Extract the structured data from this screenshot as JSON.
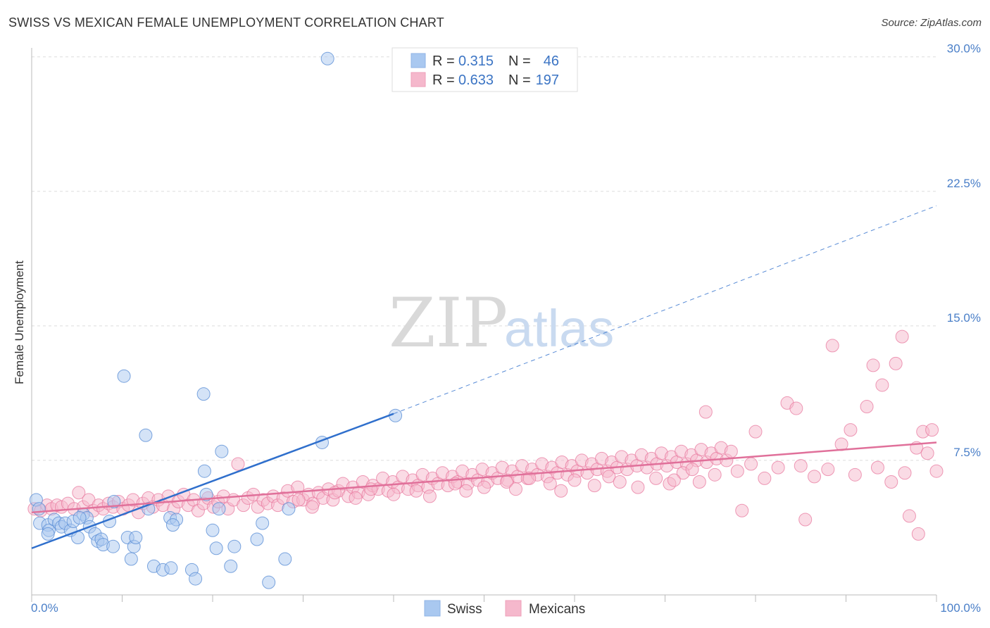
{
  "header": {
    "title": "SWISS VS MEXICAN FEMALE UNEMPLOYMENT CORRELATION CHART",
    "source": "Source: ZipAtlas.com"
  },
  "watermark": {
    "zip": "ZIP",
    "atlas": "atlas"
  },
  "legend": {
    "items": [
      {
        "r_label": "R =",
        "r_value": "0.315",
        "n_label": "N =",
        "n_value": "46",
        "color": "#a9c8f0"
      },
      {
        "r_label": "R =",
        "r_value": "0.633",
        "n_label": "N =",
        "n_value": "197",
        "color": "#f5b8cc"
      }
    ]
  },
  "bottom_legend": {
    "swiss": "Swiss",
    "mexicans": "Mexicans"
  },
  "chart_data": {
    "type": "scatter",
    "title": "SWISS VS MEXICAN FEMALE UNEMPLOYMENT CORRELATION CHART",
    "xlabel": "",
    "ylabel": "Female Unemployment",
    "xlim": [
      0,
      100
    ],
    "ylim": [
      0,
      30.5
    ],
    "x_tick_labels": [
      "0.0%",
      "100.0%"
    ],
    "y_ticks": [
      7.5,
      15.0,
      22.5,
      30.0
    ],
    "y_tick_labels": [
      "7.5%",
      "15.0%",
      "22.5%",
      "30.0%"
    ],
    "grid": true,
    "colors": {
      "swiss": "#5b8fd6",
      "swiss_fill": "#a9c8f0",
      "mexicans": "#e8799f",
      "mexicans_fill": "#f5b8cc",
      "swiss_line": "#2f6fcc",
      "mexicans_line": "#e0709a"
    },
    "series": [
      {
        "name": "Swiss",
        "trend": {
          "x0": 0,
          "y0": 2.6,
          "x1": 40,
          "y1": 10.1,
          "dash_x1": 100,
          "dash_y1": 21.7
        },
        "points": [
          [
            0.5,
            5.3
          ],
          [
            0.8,
            4.8
          ],
          [
            0.9,
            4.0
          ],
          [
            1.8,
            3.9
          ],
          [
            1.9,
            3.6
          ],
          [
            2.5,
            4.2
          ],
          [
            3.0,
            4.0
          ],
          [
            3.3,
            3.8
          ],
          [
            3.7,
            4.0
          ],
          [
            4.3,
            3.6
          ],
          [
            4.6,
            4.1
          ],
          [
            5.1,
            3.2
          ],
          [
            5.7,
            4.5
          ],
          [
            6.1,
            4.3
          ],
          [
            6.4,
            3.8
          ],
          [
            7.0,
            3.4
          ],
          [
            7.3,
            3.0
          ],
          [
            7.7,
            3.1
          ],
          [
            7.9,
            2.8
          ],
          [
            8.6,
            4.1
          ],
          [
            9.1,
            5.2
          ],
          [
            10.2,
            12.2
          ],
          [
            10.6,
            3.2
          ],
          [
            11.0,
            2.0
          ],
          [
            11.3,
            2.7
          ],
          [
            11.5,
            3.2
          ],
          [
            12.6,
            8.9
          ],
          [
            12.9,
            4.8
          ],
          [
            13.5,
            1.6
          ],
          [
            14.5,
            1.4
          ],
          [
            15.3,
            4.3
          ],
          [
            15.4,
            1.5
          ],
          [
            16.0,
            4.2
          ],
          [
            17.7,
            1.4
          ],
          [
            18.1,
            0.9
          ],
          [
            19.0,
            11.2
          ],
          [
            19.1,
            6.9
          ],
          [
            19.3,
            5.6
          ],
          [
            20.0,
            3.6
          ],
          [
            20.4,
            2.6
          ],
          [
            20.7,
            4.8
          ],
          [
            21.0,
            8.0
          ],
          [
            22.4,
            2.7
          ],
          [
            24.9,
            3.1
          ],
          [
            25.5,
            4.0
          ],
          [
            26.2,
            0.7
          ],
          [
            28.0,
            2.0
          ],
          [
            28.4,
            4.8
          ],
          [
            32.1,
            8.5
          ],
          [
            32.7,
            29.9
          ],
          [
            40.2,
            10.0
          ],
          [
            1.8,
            3.4
          ],
          [
            5.3,
            4.3
          ],
          [
            9.0,
            2.7
          ],
          [
            15.6,
            3.9
          ],
          [
            22.0,
            1.6
          ]
        ]
      },
      {
        "name": "Mexicans",
        "trend": {
          "x0": 0,
          "y0": 4.6,
          "x1": 100,
          "y1": 8.5
        },
        "points": [
          [
            0.3,
            4.8
          ],
          [
            1.0,
            4.7
          ],
          [
            1.7,
            5.0
          ],
          [
            2.2,
            4.8
          ],
          [
            2.8,
            5.0
          ],
          [
            3.3,
            4.9
          ],
          [
            4.0,
            5.1
          ],
          [
            4.7,
            4.8
          ],
          [
            5.2,
            5.7
          ],
          [
            5.7,
            4.9
          ],
          [
            6.3,
            5.3
          ],
          [
            6.8,
            4.7
          ],
          [
            7.4,
            5.0
          ],
          [
            7.9,
            4.8
          ],
          [
            8.5,
            5.1
          ],
          [
            9.0,
            4.9
          ],
          [
            9.6,
            5.2
          ],
          [
            10.1,
            4.8
          ],
          [
            10.7,
            5.0
          ],
          [
            11.2,
            5.3
          ],
          [
            11.8,
            4.6
          ],
          [
            12.3,
            5.1
          ],
          [
            12.9,
            5.4
          ],
          [
            13.4,
            4.9
          ],
          [
            14.0,
            5.3
          ],
          [
            14.5,
            5.0
          ],
          [
            15.1,
            5.5
          ],
          [
            15.7,
            4.8
          ],
          [
            16.2,
            5.2
          ],
          [
            16.8,
            5.6
          ],
          [
            17.3,
            5.0
          ],
          [
            17.9,
            5.3
          ],
          [
            18.4,
            4.7
          ],
          [
            19.0,
            5.1
          ],
          [
            19.5,
            5.4
          ],
          [
            20.1,
            4.9
          ],
          [
            20.6,
            5.2
          ],
          [
            21.2,
            5.5
          ],
          [
            21.7,
            4.8
          ],
          [
            22.3,
            5.3
          ],
          [
            22.8,
            7.3
          ],
          [
            23.4,
            5.0
          ],
          [
            23.9,
            5.4
          ],
          [
            24.5,
            5.6
          ],
          [
            25.0,
            4.9
          ],
          [
            25.6,
            5.3
          ],
          [
            26.1,
            5.1
          ],
          [
            26.7,
            5.5
          ],
          [
            27.2,
            5.0
          ],
          [
            27.8,
            5.4
          ],
          [
            28.3,
            5.8
          ],
          [
            28.9,
            5.2
          ],
          [
            29.4,
            6.0
          ],
          [
            30.0,
            5.3
          ],
          [
            30.6,
            5.6
          ],
          [
            31.1,
            5.1
          ],
          [
            31.7,
            5.7
          ],
          [
            32.2,
            5.4
          ],
          [
            32.8,
            5.9
          ],
          [
            33.3,
            5.3
          ],
          [
            33.9,
            5.8
          ],
          [
            34.4,
            6.2
          ],
          [
            35.0,
            5.5
          ],
          [
            35.5,
            6.0
          ],
          [
            36.1,
            5.7
          ],
          [
            36.6,
            6.3
          ],
          [
            37.2,
            5.6
          ],
          [
            37.7,
            6.1
          ],
          [
            38.3,
            5.9
          ],
          [
            38.8,
            6.5
          ],
          [
            39.4,
            5.8
          ],
          [
            39.9,
            6.3
          ],
          [
            40.5,
            6.0
          ],
          [
            41.0,
            6.6
          ],
          [
            41.6,
            5.9
          ],
          [
            42.1,
            6.4
          ],
          [
            42.7,
            6.1
          ],
          [
            43.2,
            6.7
          ],
          [
            43.8,
            6.0
          ],
          [
            44.3,
            6.5
          ],
          [
            44.9,
            6.2
          ],
          [
            45.4,
            6.8
          ],
          [
            46.0,
            6.1
          ],
          [
            46.5,
            6.6
          ],
          [
            47.1,
            6.3
          ],
          [
            47.6,
            6.9
          ],
          [
            48.2,
            6.2
          ],
          [
            48.7,
            6.7
          ],
          [
            49.3,
            6.4
          ],
          [
            49.8,
            7.0
          ],
          [
            50.4,
            6.3
          ],
          [
            50.9,
            6.8
          ],
          [
            51.5,
            6.5
          ],
          [
            52.0,
            7.1
          ],
          [
            52.6,
            6.4
          ],
          [
            53.1,
            6.9
          ],
          [
            53.7,
            6.6
          ],
          [
            54.2,
            7.2
          ],
          [
            54.8,
            6.5
          ],
          [
            55.3,
            7.0
          ],
          [
            55.9,
            6.7
          ],
          [
            56.4,
            7.3
          ],
          [
            57.0,
            6.6
          ],
          [
            57.5,
            7.1
          ],
          [
            58.1,
            6.8
          ],
          [
            58.6,
            7.4
          ],
          [
            59.2,
            6.7
          ],
          [
            59.7,
            7.2
          ],
          [
            60.3,
            6.9
          ],
          [
            60.8,
            7.5
          ],
          [
            61.4,
            6.8
          ],
          [
            61.9,
            7.3
          ],
          [
            62.5,
            7.0
          ],
          [
            63.0,
            7.6
          ],
          [
            63.6,
            6.9
          ],
          [
            64.1,
            7.4
          ],
          [
            64.7,
            7.1
          ],
          [
            65.2,
            7.7
          ],
          [
            65.8,
            7.0
          ],
          [
            66.3,
            7.5
          ],
          [
            66.9,
            7.2
          ],
          [
            67.4,
            7.8
          ],
          [
            68.0,
            7.1
          ],
          [
            68.5,
            7.6
          ],
          [
            69.1,
            7.3
          ],
          [
            69.6,
            7.9
          ],
          [
            70.2,
            7.2
          ],
          [
            70.7,
            7.7
          ],
          [
            71.3,
            7.4
          ],
          [
            71.8,
            8.0
          ],
          [
            72.4,
            7.3
          ],
          [
            72.9,
            7.8
          ],
          [
            73.5,
            7.5
          ],
          [
            74.0,
            8.1
          ],
          [
            74.6,
            7.4
          ],
          [
            75.1,
            7.9
          ],
          [
            75.7,
            7.6
          ],
          [
            76.2,
            8.2
          ],
          [
            76.8,
            7.5
          ],
          [
            77.3,
            8.0
          ],
          [
            29.5,
            5.3
          ],
          [
            31.0,
            4.9
          ],
          [
            33.5,
            5.7
          ],
          [
            35.8,
            5.4
          ],
          [
            37.5,
            5.9
          ],
          [
            40.0,
            5.6
          ],
          [
            42.5,
            5.8
          ],
          [
            44.0,
            5.5
          ],
          [
            46.8,
            6.2
          ],
          [
            48.0,
            5.8
          ],
          [
            50.0,
            6.0
          ],
          [
            52.5,
            6.3
          ],
          [
            53.5,
            5.9
          ],
          [
            55.0,
            6.5
          ],
          [
            57.3,
            6.2
          ],
          [
            58.5,
            5.8
          ],
          [
            60.0,
            6.4
          ],
          [
            62.2,
            6.1
          ],
          [
            63.8,
            6.6
          ],
          [
            65.0,
            6.3
          ],
          [
            67.0,
            6.0
          ],
          [
            69.0,
            6.5
          ],
          [
            70.5,
            6.2
          ],
          [
            72.0,
            6.8
          ],
          [
            73.8,
            6.3
          ],
          [
            75.5,
            6.7
          ],
          [
            78.0,
            6.9
          ],
          [
            79.5,
            7.3
          ],
          [
            81.0,
            6.5
          ],
          [
            82.5,
            7.1
          ],
          [
            83.5,
            10.7
          ],
          [
            85.0,
            7.2
          ],
          [
            86.5,
            6.6
          ],
          [
            88.0,
            7.0
          ],
          [
            89.5,
            8.4
          ],
          [
            91.0,
            6.7
          ],
          [
            92.3,
            10.5
          ],
          [
            93.5,
            7.1
          ],
          [
            95.0,
            6.3
          ],
          [
            96.5,
            6.8
          ],
          [
            97.8,
            8.2
          ],
          [
            98.5,
            9.1
          ],
          [
            99.0,
            7.9
          ],
          [
            99.5,
            9.2
          ],
          [
            100.0,
            6.9
          ],
          [
            88.5,
            13.9
          ],
          [
            93.0,
            12.8
          ],
          [
            95.5,
            12.9
          ],
          [
            94.0,
            11.7
          ],
          [
            96.2,
            14.4
          ],
          [
            90.5,
            9.2
          ],
          [
            84.5,
            10.4
          ],
          [
            80.0,
            9.1
          ],
          [
            78.5,
            4.7
          ],
          [
            85.5,
            4.2
          ],
          [
            97.0,
            4.4
          ],
          [
            98.0,
            3.4
          ],
          [
            74.5,
            10.2
          ],
          [
            73.0,
            7.0
          ],
          [
            71.0,
            6.4
          ]
        ]
      }
    ]
  }
}
